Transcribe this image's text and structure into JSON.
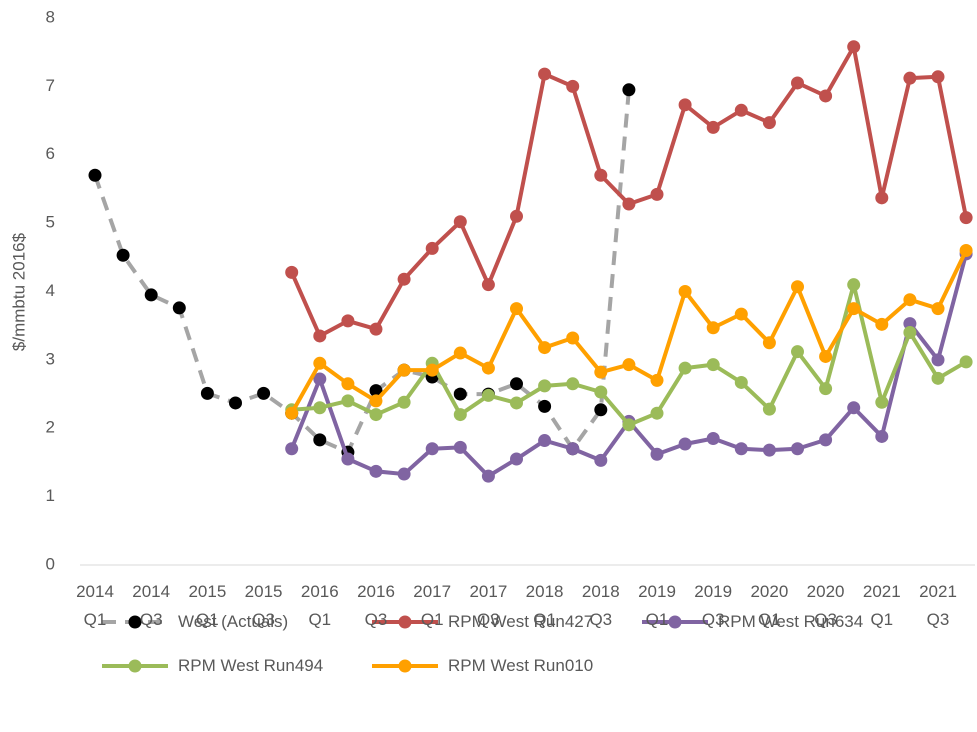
{
  "chart_data": {
    "type": "line",
    "y_label": "$/mmbtu 2016$",
    "categories": [
      "2014 Q1",
      null,
      "2014 Q3",
      null,
      "2015 Q1",
      null,
      "2015 Q3",
      null,
      "2016 Q1",
      null,
      "2016 Q3",
      null,
      "2017 Q1",
      null,
      "2017 Q3",
      null,
      "2018 Q1",
      null,
      "2018 Q3",
      null,
      "2019 Q1",
      null,
      "2019 Q3",
      null,
      "2020 Q1",
      null,
      "2020 Q3",
      null,
      "2021 Q1",
      null,
      "2021 Q3",
      null
    ],
    "ylim": [
      0,
      8
    ],
    "yticks": [
      0,
      1,
      2,
      3,
      4,
      5,
      6,
      7,
      8
    ],
    "grid": false,
    "series": [
      {
        "name": "West (Actuals)",
        "color": "#a5a5a5",
        "marker_color": "#000000",
        "dashed": true,
        "values": [
          5.7,
          4.53,
          3.95,
          3.76,
          2.51,
          2.37,
          2.51,
          2.22,
          1.83,
          1.65,
          2.55,
          2.85,
          2.75,
          2.5,
          2.5,
          2.65,
          2.32,
          1.7,
          2.27,
          6.95,
          null,
          null,
          null,
          null,
          null,
          null,
          null,
          null,
          null,
          null,
          null,
          null
        ]
      },
      {
        "name": "RPM West Run427",
        "color": "#c0504d",
        "values": [
          null,
          null,
          null,
          null,
          null,
          null,
          null,
          4.28,
          3.35,
          3.57,
          3.45,
          4.18,
          4.63,
          5.02,
          4.1,
          5.1,
          7.18,
          7.0,
          5.7,
          5.28,
          5.42,
          6.73,
          6.4,
          6.65,
          6.47,
          7.05,
          6.86,
          7.58,
          5.37,
          7.12,
          7.14,
          5.08
        ]
      },
      {
        "name": "RPM West Run634",
        "color": "#8064a2",
        "values": [
          null,
          null,
          null,
          null,
          null,
          null,
          null,
          1.7,
          2.72,
          1.55,
          1.37,
          1.33,
          1.7,
          1.72,
          1.3,
          1.55,
          1.82,
          1.7,
          1.53,
          2.1,
          1.62,
          1.77,
          1.85,
          1.7,
          1.68,
          1.7,
          1.83,
          2.3,
          1.88,
          3.53,
          3.0,
          4.55
        ]
      },
      {
        "name": "RPM West Run494",
        "color": "#9bbb59",
        "values": [
          null,
          null,
          null,
          null,
          null,
          null,
          null,
          2.27,
          2.3,
          2.4,
          2.2,
          2.38,
          2.95,
          2.2,
          2.48,
          2.37,
          2.62,
          2.65,
          2.53,
          2.05,
          2.22,
          2.88,
          2.93,
          2.67,
          2.28,
          3.12,
          2.58,
          4.1,
          2.38,
          3.4,
          2.73,
          2.97
        ]
      },
      {
        "name": "RPM West Run010",
        "color": "#ffa000",
        "values": [
          null,
          null,
          null,
          null,
          null,
          null,
          null,
          2.22,
          2.95,
          2.65,
          2.4,
          2.85,
          2.85,
          3.1,
          2.88,
          3.75,
          3.18,
          3.32,
          2.82,
          2.93,
          2.7,
          4.0,
          3.47,
          3.67,
          3.25,
          4.07,
          3.05,
          3.75,
          3.52,
          3.88,
          3.75,
          4.6
        ]
      }
    ]
  }
}
